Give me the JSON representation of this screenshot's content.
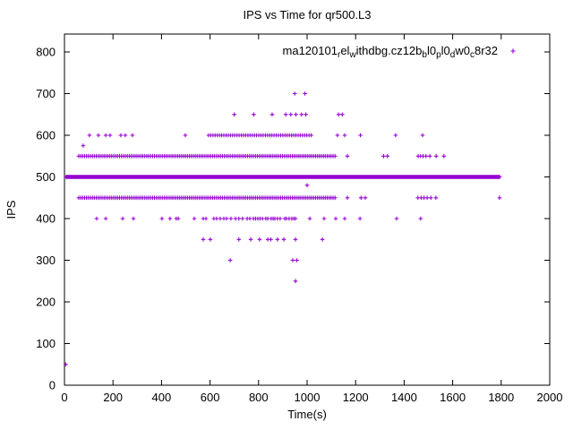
{
  "chart_data": {
    "type": "scatter",
    "title": "IPS vs Time for qr500.L3",
    "xlabel": "Time(s)",
    "ylabel": "IPS",
    "xlim": [
      0,
      2000
    ],
    "ylim": [
      0,
      800
    ],
    "xticks": [
      0,
      200,
      400,
      600,
      800,
      1000,
      1200,
      1400,
      1600,
      1800,
      2000
    ],
    "yticks": [
      0,
      100,
      200,
      300,
      400,
      500,
      600,
      700,
      800
    ],
    "grid": false,
    "legend_position": "top-right-inside",
    "marker": "plus",
    "marker_color": "#9400D3",
    "axis_color": "#000000",
    "series_name_raw": "ma120101_rel_withdbg.cz12b_bl0_pl0_dw0_c8r32",
    "legend_segments": [
      {
        "text": "ma120101"
      },
      {
        "text": "r",
        "sub": true
      },
      {
        "text": "el"
      },
      {
        "text": "w",
        "sub": true
      },
      {
        "text": "ithdbg.cz12b"
      },
      {
        "text": "b",
        "sub": true
      },
      {
        "text": "l0"
      },
      {
        "text": "p",
        "sub": true
      },
      {
        "text": "l0"
      },
      {
        "text": "d",
        "sub": true
      },
      {
        "text": "w0"
      },
      {
        "text": "c",
        "sub": true
      },
      {
        "text": "8r32"
      }
    ],
    "rows": [
      {
        "ips": 700,
        "points": [
          949,
          991
        ]
      },
      {
        "ips": 650,
        "points": [
          700,
          780,
          856,
          912,
          933,
          954,
          977,
          995,
          1130,
          1145
        ]
      },
      {
        "ips": 600,
        "points": [
          103,
          140,
          170,
          188,
          232,
          251,
          280,
          498,
          1125,
          1155,
          1220,
          1365,
          1476
        ],
        "dense": [
          {
            "from": 594,
            "to": 1018,
            "step": 9
          }
        ]
      },
      {
        "ips": 575,
        "points": [
          77
        ]
      },
      {
        "ips": 550,
        "points": [
          1166,
          1315,
          1331,
          1458,
          1468,
          1478,
          1490,
          1506,
          1532,
          1564
        ],
        "dense": [
          {
            "from": 59,
            "to": 1118,
            "step": 8
          }
        ]
      },
      {
        "ips": 500,
        "points": [],
        "dense": [
          {
            "from": 6,
            "to": 1795,
            "step": 3
          }
        ]
      },
      {
        "ips": 480,
        "points": [
          1000
        ]
      },
      {
        "ips": 450,
        "points": [
          1166,
          1222,
          1240,
          1457,
          1470,
          1482,
          1495,
          1510,
          1531,
          1793
        ],
        "dense": [
          {
            "from": 59,
            "to": 1118,
            "step": 8
          }
        ]
      },
      {
        "ips": 400,
        "points": [
          133,
          170,
          240,
          284,
          402,
          435,
          461,
          469,
          535,
          572,
          583,
          616,
          627,
          642,
          657,
          668,
          686,
          705,
          719,
          734,
          753,
          764,
          779,
          788,
          797,
          806,
          816,
          830,
          838,
          852,
          860,
          867,
          878,
          889,
          908,
          915,
          926,
          937,
          945,
          952,
          1011,
          1070,
          1118,
          1155,
          1218,
          1369,
          1468
        ]
      },
      {
        "ips": 350,
        "points": [
          572,
          601,
          719,
          768,
          804,
          838,
          850,
          878,
          904,
          952,
          1063
        ]
      },
      {
        "ips": 300,
        "points": [
          683,
          941,
          958
        ]
      },
      {
        "ips": 250,
        "points": [
          952
        ]
      },
      {
        "ips": 50,
        "points": [
          5
        ]
      }
    ]
  }
}
